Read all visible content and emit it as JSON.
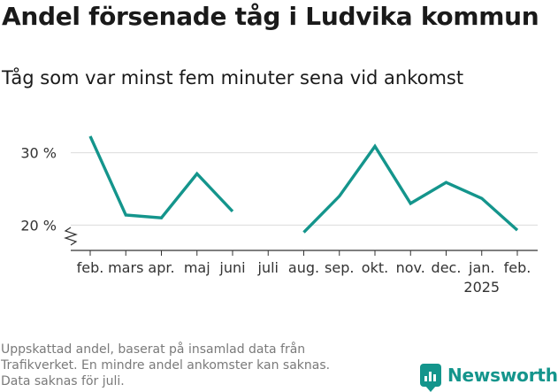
{
  "header": {
    "title": "Andel försenade tåg i Ludvika kommun",
    "subtitle": "Tåg som var minst fem minuter sena vid ankomst"
  },
  "chart_data": {
    "type": "line",
    "categories": [
      "feb.",
      "mars",
      "apr.",
      "maj",
      "juni",
      "juli",
      "aug.",
      "sep.",
      "okt.",
      "nov.",
      "dec.",
      "jan.",
      "feb."
    ],
    "year_label": "2025",
    "year_label_under": "jan.",
    "series": [
      {
        "color": "#14958c",
        "values": [
          32.3,
          21.4,
          21.0,
          27.1,
          21.9,
          null,
          19.0,
          24.0,
          30.9,
          23.0,
          25.9,
          23.7,
          19.3
        ]
      }
    ],
    "yticks": [
      20,
      30
    ],
    "ytick_format": "{} %",
    "ylim": [
      16.5,
      34
    ],
    "y_axis_break": true,
    "grid": true,
    "legend": "none"
  },
  "footnote": {
    "lines": [
      "Uppskattad andel, baserat på insamlad data från",
      "Trafikverket. En mindre andel ankomster kan saknas.",
      "Data saknas för juli."
    ]
  },
  "brand": {
    "name": "Newsworthy",
    "color": "#14958c"
  }
}
